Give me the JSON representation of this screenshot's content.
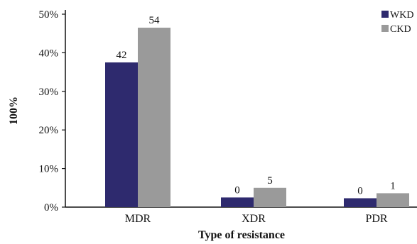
{
  "chart_data": {
    "type": "bar",
    "categories": [
      "MDR",
      "XDR",
      "PDR"
    ],
    "series": [
      {
        "name": "WKD",
        "color": "#2e2a6e",
        "values": [
          37.5,
          2.5,
          2.3
        ],
        "labels": [
          "42",
          "0",
          "0"
        ]
      },
      {
        "name": "CKD",
        "color": "#9a9a9a",
        "values": [
          46.5,
          5.0,
          3.6
        ],
        "labels": [
          "54",
          "5",
          "1"
        ]
      }
    ],
    "xlabel": "Type of resistance",
    "ylabel": "100%",
    "ylim": [
      0,
      50
    ],
    "yticks": [
      "0%",
      "10%",
      "20%",
      "30%",
      "40%",
      "50%"
    ],
    "ytick_values": [
      0,
      10,
      20,
      30,
      40,
      50
    ],
    "legend_position": "top-right",
    "legend_labels": [
      "WKD",
      "CKD"
    ],
    "grid": false
  }
}
